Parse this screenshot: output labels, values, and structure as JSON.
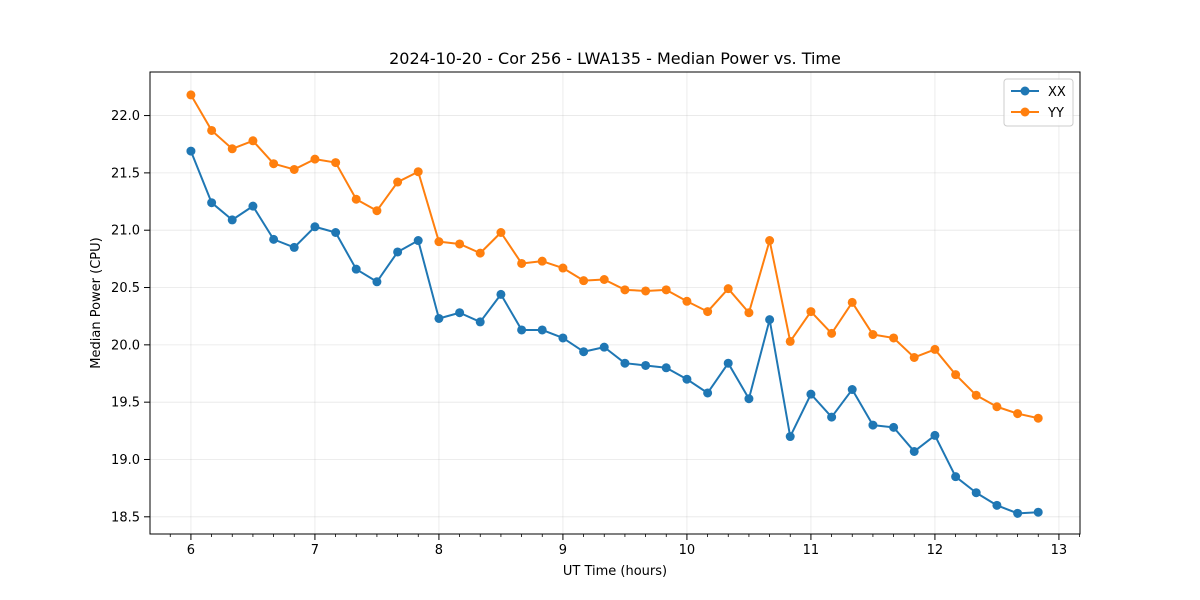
{
  "chart_data": {
    "type": "line",
    "title": "2024-10-20 - Cor 256 - LWA135 - Median Power vs. Time",
    "xlabel": "UT Time (hours)",
    "ylabel": "Median Power (CPU)",
    "xlim": [
      5.67,
      13.17
    ],
    "ylim": [
      18.35,
      22.38
    ],
    "xticks": [
      6,
      7,
      8,
      9,
      10,
      11,
      12,
      13
    ],
    "xtick_labels": [
      "6",
      "7",
      "8",
      "9",
      "10",
      "11",
      "12",
      "13"
    ],
    "yticks": [
      18.5,
      19.0,
      19.5,
      20.0,
      20.5,
      21.0,
      21.5,
      22.0
    ],
    "ytick_labels": [
      "18.5",
      "19.0",
      "19.5",
      "20.0",
      "20.5",
      "21.0",
      "21.5",
      "22.0"
    ],
    "grid": true,
    "legend_position": "top-right",
    "x": [
      6.0,
      6.167,
      6.333,
      6.5,
      6.667,
      6.833,
      7.0,
      7.167,
      7.333,
      7.5,
      7.667,
      7.833,
      8.0,
      8.167,
      8.333,
      8.5,
      8.667,
      8.833,
      9.0,
      9.167,
      9.333,
      9.5,
      9.667,
      9.833,
      10.0,
      10.167,
      10.333,
      10.5,
      10.667,
      10.833,
      11.0,
      11.167,
      11.333,
      11.5,
      11.667,
      11.833,
      12.0,
      12.167,
      12.333,
      12.5,
      12.667,
      12.833
    ],
    "series": [
      {
        "name": "XX",
        "color": "#1f77b4",
        "values": [
          21.69,
          21.24,
          21.09,
          21.21,
          20.92,
          20.85,
          21.03,
          20.98,
          20.66,
          20.55,
          20.81,
          20.91,
          20.23,
          20.28,
          20.2,
          20.44,
          20.13,
          20.13,
          20.06,
          19.94,
          19.98,
          19.84,
          19.82,
          19.8,
          19.7,
          19.58,
          19.84,
          19.53,
          20.22,
          19.2,
          19.57,
          19.37,
          19.61,
          19.3,
          19.28,
          19.07,
          19.21,
          18.85,
          18.71,
          18.6,
          18.53,
          18.54
        ]
      },
      {
        "name": "YY",
        "color": "#ff7f0e",
        "values": [
          22.18,
          21.87,
          21.71,
          21.78,
          21.58,
          21.53,
          21.62,
          21.59,
          21.27,
          21.17,
          21.42,
          21.51,
          20.9,
          20.88,
          20.8,
          20.98,
          20.71,
          20.73,
          20.67,
          20.56,
          20.57,
          20.48,
          20.47,
          20.48,
          20.38,
          20.29,
          20.49,
          20.28,
          20.91,
          20.03,
          20.29,
          20.1,
          20.37,
          20.09,
          20.06,
          19.89,
          19.96,
          19.74,
          19.56,
          19.46,
          19.4,
          19.36
        ]
      }
    ]
  }
}
